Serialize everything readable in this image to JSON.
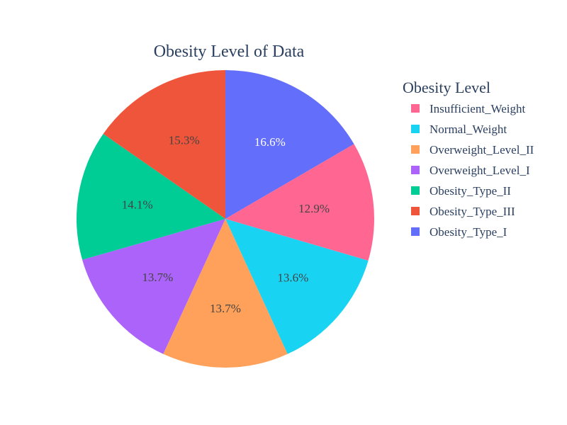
{
  "chart_data": {
    "type": "pie",
    "title": "Obesity Level of Data",
    "legend_title": "Obesity Level",
    "legend_position": "right",
    "slices": [
      {
        "label": "Obesity_Type_I",
        "percent": 16.6,
        "text": "16.6%",
        "color": "#636efa",
        "text_color": "#ffffff"
      },
      {
        "label": "Insufficient_Weight",
        "percent": 12.9,
        "text": "12.9%",
        "color": "#ff6692",
        "text_color": "#444444"
      },
      {
        "label": "Normal_Weight",
        "percent": 13.6,
        "text": "13.6%",
        "color": "#19d3f3",
        "text_color": "#444444"
      },
      {
        "label": "Overweight_Level_II",
        "percent": 13.7,
        "text": "13.7%",
        "color": "#ffa15a",
        "text_color": "#444444"
      },
      {
        "label": "Overweight_Level_I",
        "percent": 13.7,
        "text": "13.7%",
        "color": "#ab63fa",
        "text_color": "#444444"
      },
      {
        "label": "Obesity_Type_II",
        "percent": 14.1,
        "text": "14.1%",
        "color": "#00cc96",
        "text_color": "#444444"
      },
      {
        "label": "Obesity_Type_III",
        "percent": 15.3,
        "text": "15.3%",
        "color": "#ef553b",
        "text_color": "#444444"
      }
    ],
    "legend_order": [
      "Insufficient_Weight",
      "Normal_Weight",
      "Overweight_Level_II",
      "Overweight_Level_I",
      "Obesity_Type_II",
      "Obesity_Type_III",
      "Obesity_Type_I"
    ]
  }
}
